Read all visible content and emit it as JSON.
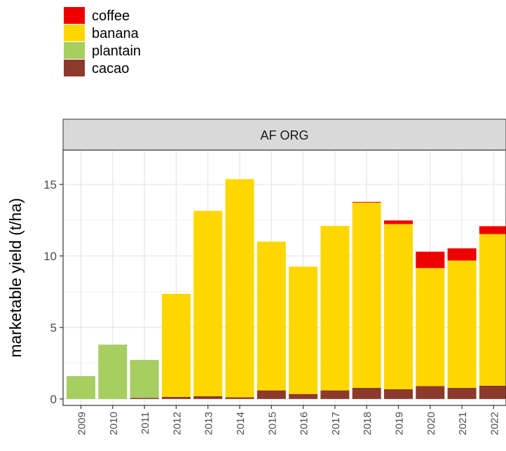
{
  "chart_data": {
    "type": "bar",
    "stacked": true,
    "facet_title": "AF ORG",
    "ylabel": "marketable yield (t/ha)",
    "xlabel": "",
    "ylim": [
      -0.45,
      17.4
    ],
    "yticks": [
      0,
      5,
      10,
      15
    ],
    "legend_position": "top-left",
    "categories": [
      "2009",
      "2010",
      "2011",
      "2012",
      "2013",
      "2014",
      "2015",
      "2016",
      "2017",
      "2018",
      "2019",
      "2020",
      "2021",
      "2022"
    ],
    "series": [
      {
        "name": "cacao",
        "color": "#8B3A2B",
        "values": [
          0,
          0,
          0.08,
          0.15,
          0.2,
          0.12,
          0.6,
          0.35,
          0.6,
          0.78,
          0.68,
          0.9,
          0.78,
          0.93
        ]
      },
      {
        "name": "plantain",
        "color": "#A6CE61",
        "values": [
          1.6,
          3.8,
          2.65,
          0,
          0,
          0,
          0,
          0,
          0,
          0,
          0,
          0,
          0,
          0
        ]
      },
      {
        "name": "banana",
        "color": "#FFD700",
        "values": [
          0,
          0,
          0,
          7.2,
          12.95,
          15.25,
          10.4,
          8.9,
          11.5,
          12.95,
          11.55,
          8.25,
          8.9,
          10.6
        ]
      },
      {
        "name": "coffee",
        "color": "#EE0000",
        "values": [
          0,
          0,
          0,
          0,
          0,
          0,
          0,
          0,
          0,
          0.05,
          0.25,
          1.15,
          0.85,
          0.55
        ]
      }
    ],
    "legend_order": [
      "coffee",
      "banana",
      "plantain",
      "cacao"
    ],
    "grid": true
  }
}
